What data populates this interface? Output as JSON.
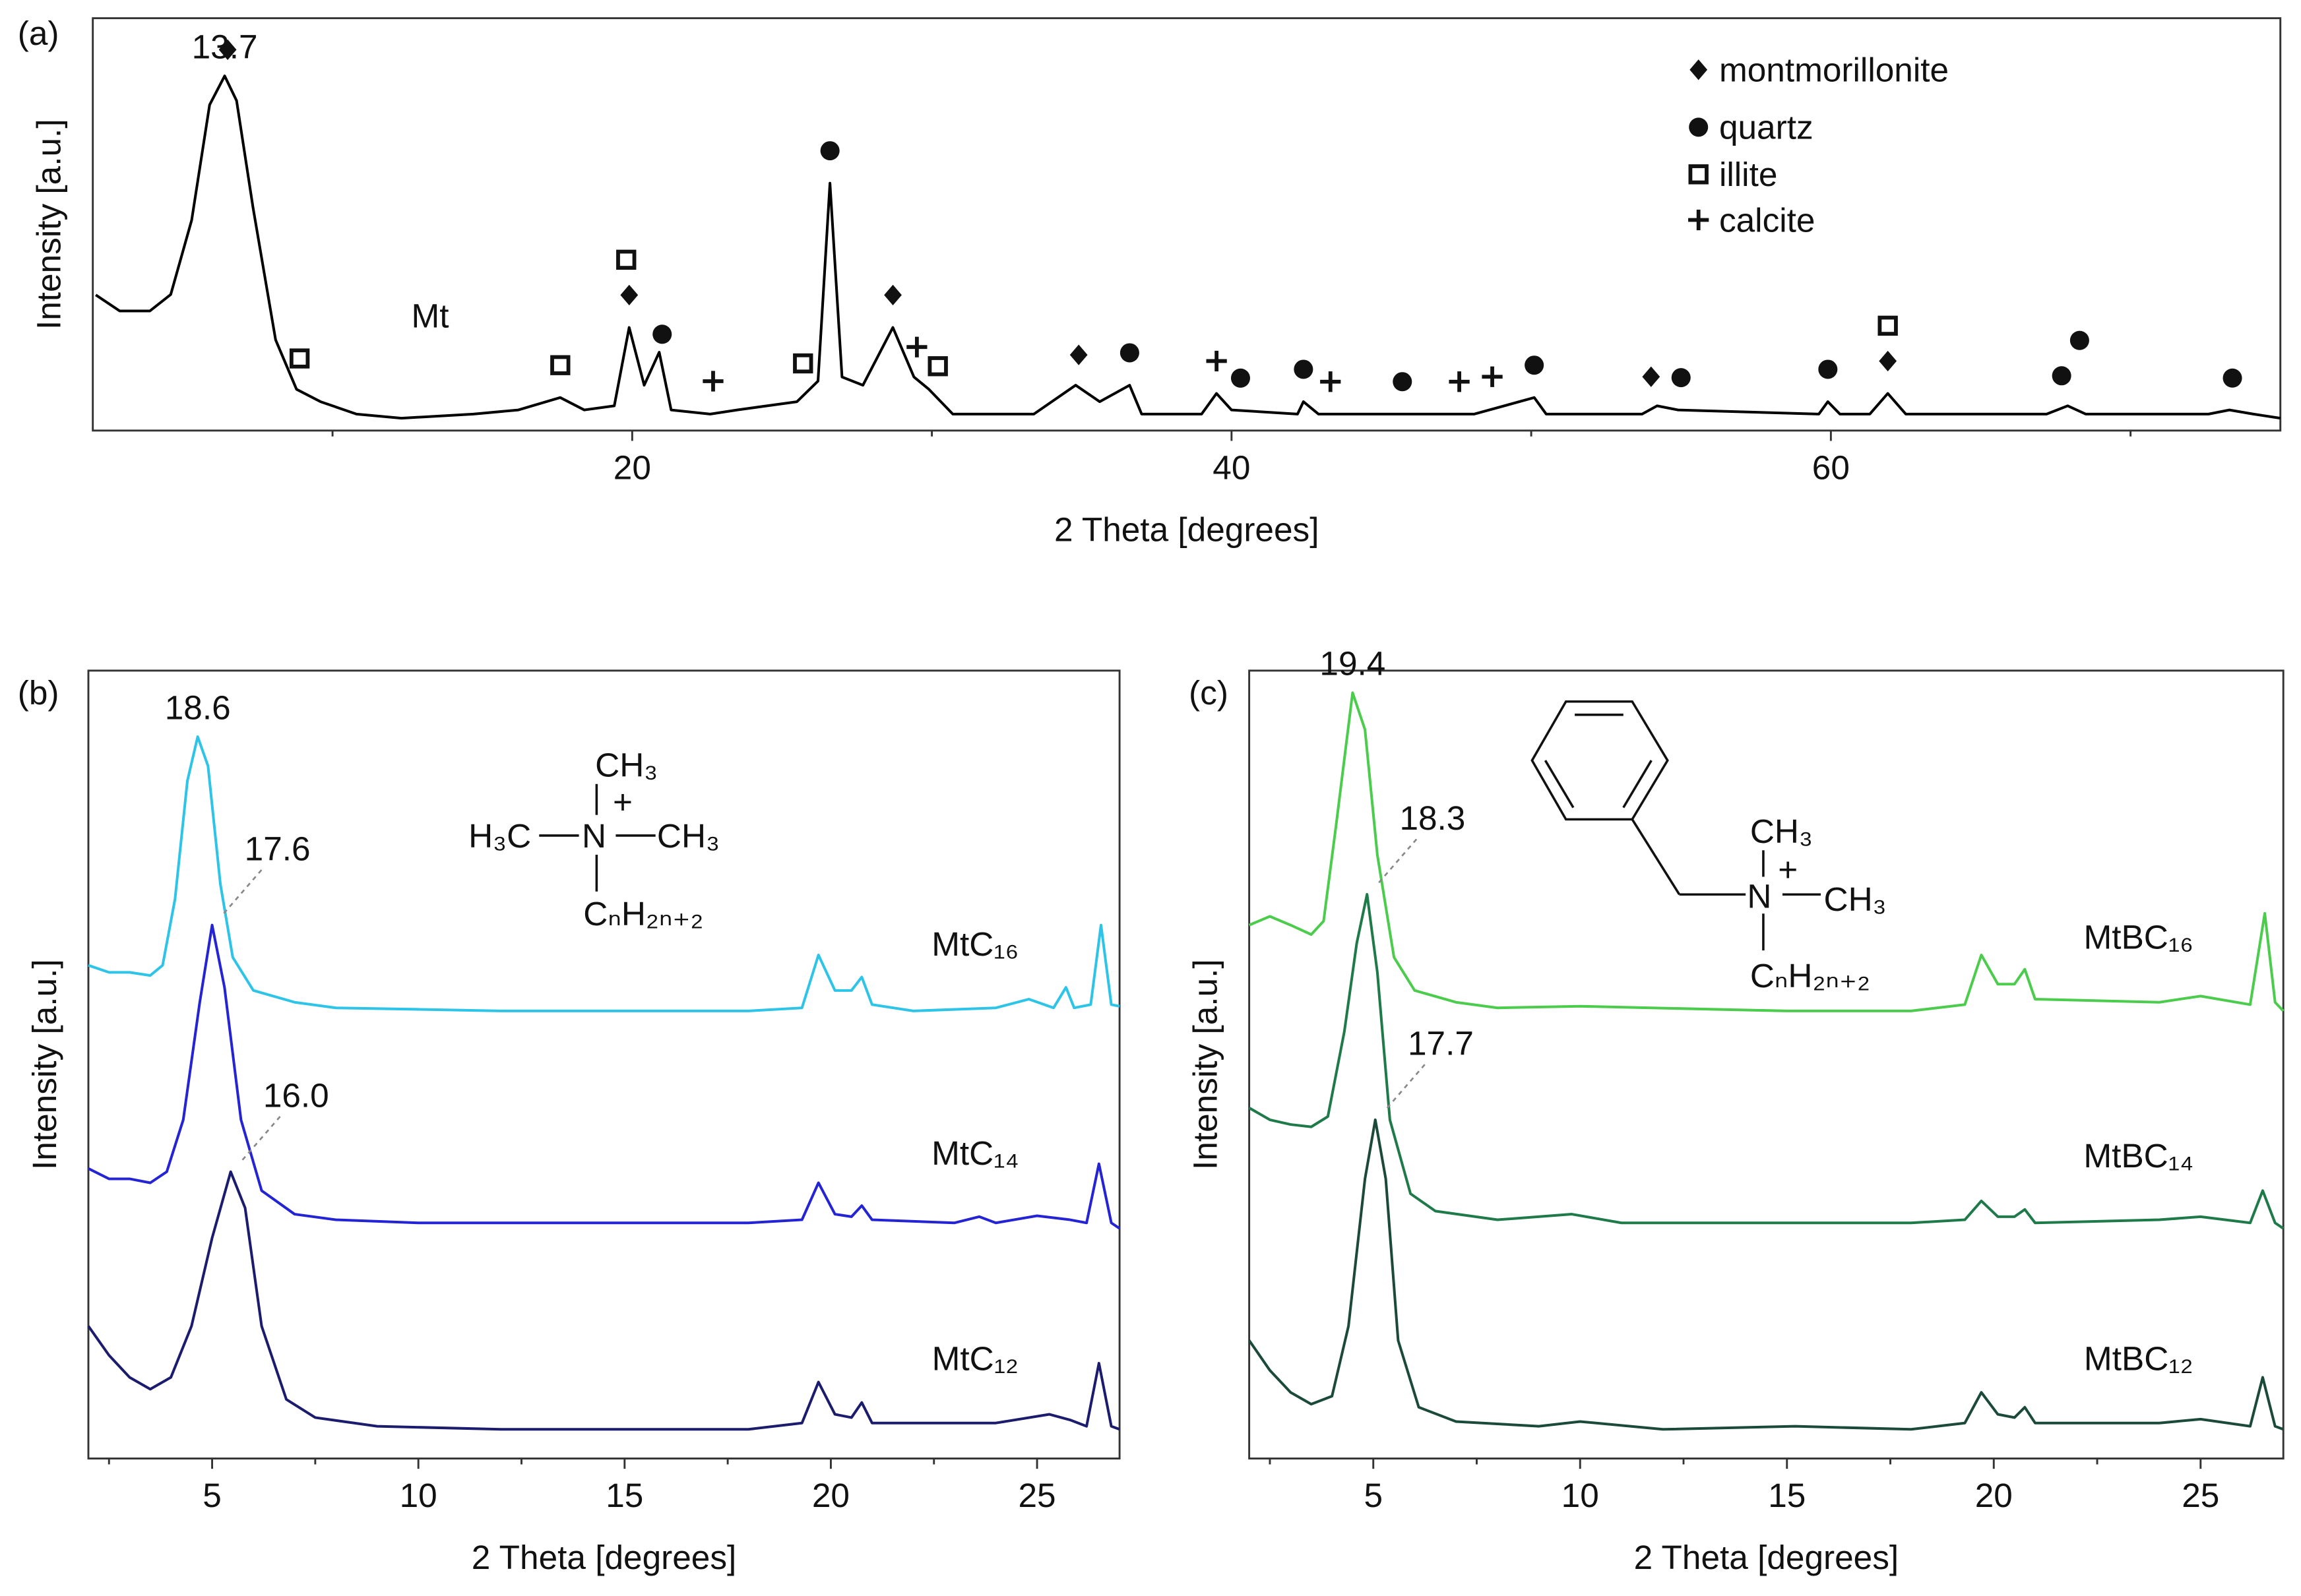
{
  "chart_data": [
    {
      "type": "line",
      "panel": "(a)",
      "xlabel": "2 Theta [degrees]",
      "ylabel": "Intensity [a.u.]",
      "xlim": [
        2,
        75
      ],
      "ylim": [
        0,
        100
      ],
      "xticks": [
        20,
        40,
        60
      ],
      "xminorticks": [
        10,
        30,
        50,
        70
      ],
      "series": [
        {
          "name": "Mt",
          "color": "#000000",
          "peak_label": "13.7",
          "x": [
            2.1,
            2.9,
            3.9,
            4.6,
            5.3,
            5.9,
            6.4,
            6.8,
            7.35,
            8.1,
            8.8,
            9.6,
            10.8,
            12.3,
            14.7,
            16.2,
            17.6,
            18.4,
            19.4,
            19.9,
            20.4,
            20.9,
            21.3,
            22.6,
            23.5,
            25.5,
            26.2,
            26.6,
            27.0,
            27.7,
            28.7,
            29.4,
            29.9,
            30.7,
            33.4,
            34.8,
            35.6,
            36.6,
            37.0,
            39.0,
            39.5,
            40.0,
            42.2,
            42.4,
            42.9,
            48.1,
            50.1,
            50.5,
            53.7,
            54.2,
            54.9,
            59.6,
            59.9,
            60.3,
            61.3,
            61.9,
            62.5,
            67.2,
            67.9,
            68.5,
            72.6,
            73.3,
            74.1,
            75
          ],
          "values": [
            32.9,
            29,
            29,
            33,
            51,
            79,
            86,
            80,
            54,
            22,
            10,
            7,
            4,
            3,
            4,
            5,
            8,
            5,
            6,
            25,
            11,
            19,
            5,
            4,
            5,
            7,
            12,
            60,
            13,
            11,
            25,
            13,
            10,
            4,
            4,
            11,
            7,
            11,
            4,
            4,
            9,
            5,
            4,
            7,
            4,
            4,
            8,
            4,
            4,
            6,
            5,
            4,
            7,
            4,
            4,
            9,
            4,
            4,
            6,
            4,
            4,
            5,
            4,
            3
          ]
        }
      ],
      "phases": [
        {
          "name": "montmorillonite",
          "symbol": "diamond",
          "peaks": [
            6.5,
            19.9,
            28.7,
            34.9,
            54.0,
            61.9
          ]
        },
        {
          "name": "quartz",
          "symbol": "circle",
          "peaks": [
            21.0,
            26.6,
            36.6,
            40.3,
            42.4,
            45.7,
            50.1,
            55.0,
            59.9,
            67.7,
            68.3,
            73.4
          ]
        },
        {
          "name": "illite",
          "symbol": "square",
          "peaks": [
            8.9,
            17.6,
            19.8,
            25.7,
            30.2,
            61.9
          ]
        },
        {
          "name": "calcite",
          "symbol": "plus",
          "peaks": [
            22.7,
            29.5,
            39.5,
            43.3,
            47.6,
            48.7
          ]
        }
      ]
    },
    {
      "type": "line",
      "panel": "(b)",
      "xlabel": "2 Theta [degrees]",
      "ylabel": "Intensity [a.u.]",
      "xlim": [
        2,
        27
      ],
      "ylim": [
        0,
        100
      ],
      "xticks": [
        5,
        10,
        15,
        20,
        25
      ],
      "xminorticks": [
        2.5,
        7.5,
        12.5,
        17.5,
        22.5
      ],
      "structure_labels": [
        "CH₃",
        "H₃C",
        "N",
        "+",
        "CH₃",
        "CₙH₂ₙ₊₂"
      ],
      "series": [
        {
          "name": "MtC₁₆",
          "color": "#2ec4e8",
          "peak_label": "18.6",
          "x": [
            2.0,
            2.5,
            3.0,
            3.5,
            3.8,
            4.1,
            4.4,
            4.65,
            4.9,
            5.2,
            5.5,
            6.0,
            7.0,
            8.0,
            10,
            12,
            15,
            18,
            19.3,
            19.7,
            20.1,
            20.5,
            20.75,
            21.0,
            22,
            24,
            24.8,
            25.4,
            25.7,
            25.9,
            26.3,
            26.55,
            26.8,
            27
          ],
          "values": [
            62.6,
            61.7,
            61.7,
            61.3,
            62.6,
            71.0,
            86.0,
            91.6,
            87.9,
            72.9,
            63.6,
            59.4,
            57.9,
            57.2,
            57.0,
            56.8,
            56.8,
            56.8,
            57.2,
            63.9,
            59.4,
            59.4,
            61.1,
            57.6,
            56.8,
            57.2,
            58.3,
            57.2,
            59.8,
            57.2,
            57.6,
            67.7,
            57.6,
            57.4
          ]
        },
        {
          "name": "MtC₁₄",
          "color": "#2424d4",
          "peak_label": "17.6",
          "x": [
            2.0,
            2.5,
            3.0,
            3.5,
            3.9,
            4.3,
            4.7,
            5.0,
            5.3,
            5.7,
            6.2,
            7,
            8,
            10,
            15,
            18,
            19.3,
            19.7,
            20.1,
            20.5,
            20.75,
            21.0,
            23,
            23.6,
            24,
            25,
            25.8,
            26.2,
            26.5,
            26.8,
            27
          ],
          "values": [
            36.8,
            35.5,
            35.5,
            35.0,
            36.4,
            43.0,
            57.9,
            67.7,
            59.8,
            43.0,
            34.0,
            31.0,
            30.3,
            29.9,
            29.9,
            29.9,
            30.3,
            35.0,
            31.0,
            30.7,
            32.1,
            30.3,
            29.9,
            30.7,
            29.9,
            30.8,
            30.3,
            29.9,
            37.4,
            29.9,
            29.2
          ]
        },
        {
          "name": "MtC₁₂",
          "color": "#1c1c6e",
          "peak_label": "16.0",
          "x": [
            2.0,
            2.5,
            3.0,
            3.5,
            4.0,
            4.5,
            5.0,
            5.45,
            5.8,
            6.2,
            6.8,
            7.5,
            9,
            12,
            15,
            18,
            19.3,
            19.7,
            20.1,
            20.5,
            20.75,
            21.0,
            24,
            25.3,
            25.8,
            26.2,
            26.5,
            26.8,
            27
          ],
          "values": [
            16.8,
            13.1,
            10.3,
            8.8,
            10.3,
            16.8,
            28.0,
            36.4,
            31.8,
            16.8,
            7.5,
            5.2,
            4.1,
            3.7,
            3.7,
            3.7,
            4.5,
            9.7,
            5.6,
            5.2,
            7.1,
            4.5,
            4.5,
            5.6,
            4.9,
            4.1,
            12.1,
            4.1,
            3.7
          ]
        }
      ]
    },
    {
      "type": "line",
      "panel": "(c)",
      "xlabel": "2 Theta [degrees]",
      "ylabel": "Intensity [a.u.]",
      "xlim": [
        2,
        27
      ],
      "ylim": [
        0,
        100
      ],
      "xticks": [
        5,
        10,
        15,
        20,
        25
      ],
      "xminorticks": [
        2.5,
        7.5,
        12.5,
        17.5,
        22.5
      ],
      "structure_labels": [
        "CH₃",
        "N",
        "+",
        "CH₃",
        "CₙH₂ₙ₊₂"
      ],
      "series": [
        {
          "name": "MtBC₁₆",
          "color": "#4ccc4c",
          "peak_label": "19.4",
          "x": [
            2.0,
            2.5,
            3.0,
            3.5,
            3.8,
            4.1,
            4.5,
            4.8,
            5.1,
            5.5,
            6,
            7,
            8,
            10,
            15,
            18,
            19.3,
            19.7,
            20.1,
            20.5,
            20.75,
            21.0,
            24,
            25,
            26.2,
            26.55,
            26.8,
            27
          ],
          "values": [
            67.7,
            68.8,
            67.7,
            66.5,
            68.2,
            80.4,
            97.2,
            92.5,
            76.6,
            63.6,
            59.4,
            57.9,
            57.2,
            57.4,
            56.8,
            56.8,
            57.6,
            63.9,
            60.2,
            60.2,
            62.1,
            58.3,
            57.9,
            58.7,
            57.6,
            69.2,
            57.9,
            56.8
          ]
        },
        {
          "name": "MtBC₁₄",
          "color": "#1f7a4a",
          "peak_label": "18.3",
          "x": [
            2.0,
            2.5,
            3.0,
            3.5,
            3.9,
            4.3,
            4.6,
            4.85,
            5.1,
            5.4,
            5.9,
            6.5,
            8,
            9.8,
            11,
            15,
            18,
            19.3,
            19.7,
            20.1,
            20.5,
            20.75,
            21.0,
            24,
            25,
            26.2,
            26.5,
            26.8,
            27
          ],
          "values": [
            44.5,
            43.0,
            42.4,
            42.1,
            43.4,
            54.2,
            65.4,
            71.6,
            61.7,
            43.0,
            33.6,
            31.4,
            30.3,
            31.0,
            29.9,
            29.9,
            29.9,
            30.3,
            32.7,
            30.7,
            30.7,
            31.6,
            29.9,
            30.3,
            30.7,
            29.9,
            34.0,
            29.9,
            29.2
          ]
        },
        {
          "name": "MtBC₁₂",
          "color": "#1b4a3a",
          "peak_label": "17.7",
          "x": [
            2.0,
            2.5,
            3.0,
            3.5,
            4.0,
            4.4,
            4.8,
            5.05,
            5.3,
            5.6,
            6.1,
            7,
            9,
            10,
            12,
            15.2,
            18,
            19.3,
            19.7,
            20.1,
            20.5,
            20.75,
            21.0,
            24,
            25,
            26.2,
            26.5,
            26.8,
            27
          ],
          "values": [
            15.0,
            11.2,
            8.4,
            6.9,
            7.9,
            16.8,
            35.5,
            43.0,
            35.5,
            15.0,
            6.5,
            4.7,
            4.1,
            4.7,
            3.7,
            4.1,
            3.7,
            4.5,
            8.4,
            5.6,
            5.2,
            6.5,
            4.5,
            4.5,
            5.0,
            4.1,
            10.3,
            4.1,
            3.7
          ]
        }
      ]
    }
  ]
}
